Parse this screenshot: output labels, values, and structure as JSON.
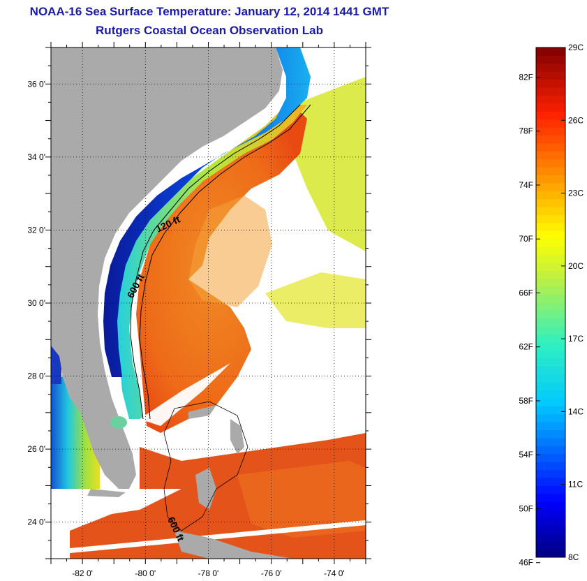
{
  "header": {
    "title": "NOAA-16 Sea Surface Temperature:  January 12, 2014 1441 GMT",
    "subtitle": "Rutgers Coastal Ocean Observation Lab"
  },
  "map": {
    "lon_range": [
      -83,
      -73
    ],
    "lat_range": [
      23,
      37
    ],
    "lon_ticks": [
      "-82 0'",
      "-80 0'",
      "-78 0'",
      "-76 0'",
      "-74 0'"
    ],
    "lat_ticks": [
      "36 0'",
      "34 0'",
      "32 0'",
      "30 0'",
      "28 0'",
      "26 0'",
      "24 0'"
    ],
    "contour_labels": {
      "c120": "120 ft",
      "c600a": "600 ft",
      "c600b": "600 ft"
    },
    "land_color": "#aaaaaa",
    "cloud_color": "#ffffff"
  },
  "colorbar": {
    "f_labels": [
      "82F",
      "78F",
      "74F",
      "70F",
      "66F",
      "62F",
      "58F",
      "54F",
      "50F",
      "46F"
    ],
    "c_labels": [
      "29C",
      "26C",
      "23C",
      "20C",
      "17C",
      "14C",
      "11C",
      "8C"
    ],
    "range_c": [
      8,
      29
    ]
  }
}
